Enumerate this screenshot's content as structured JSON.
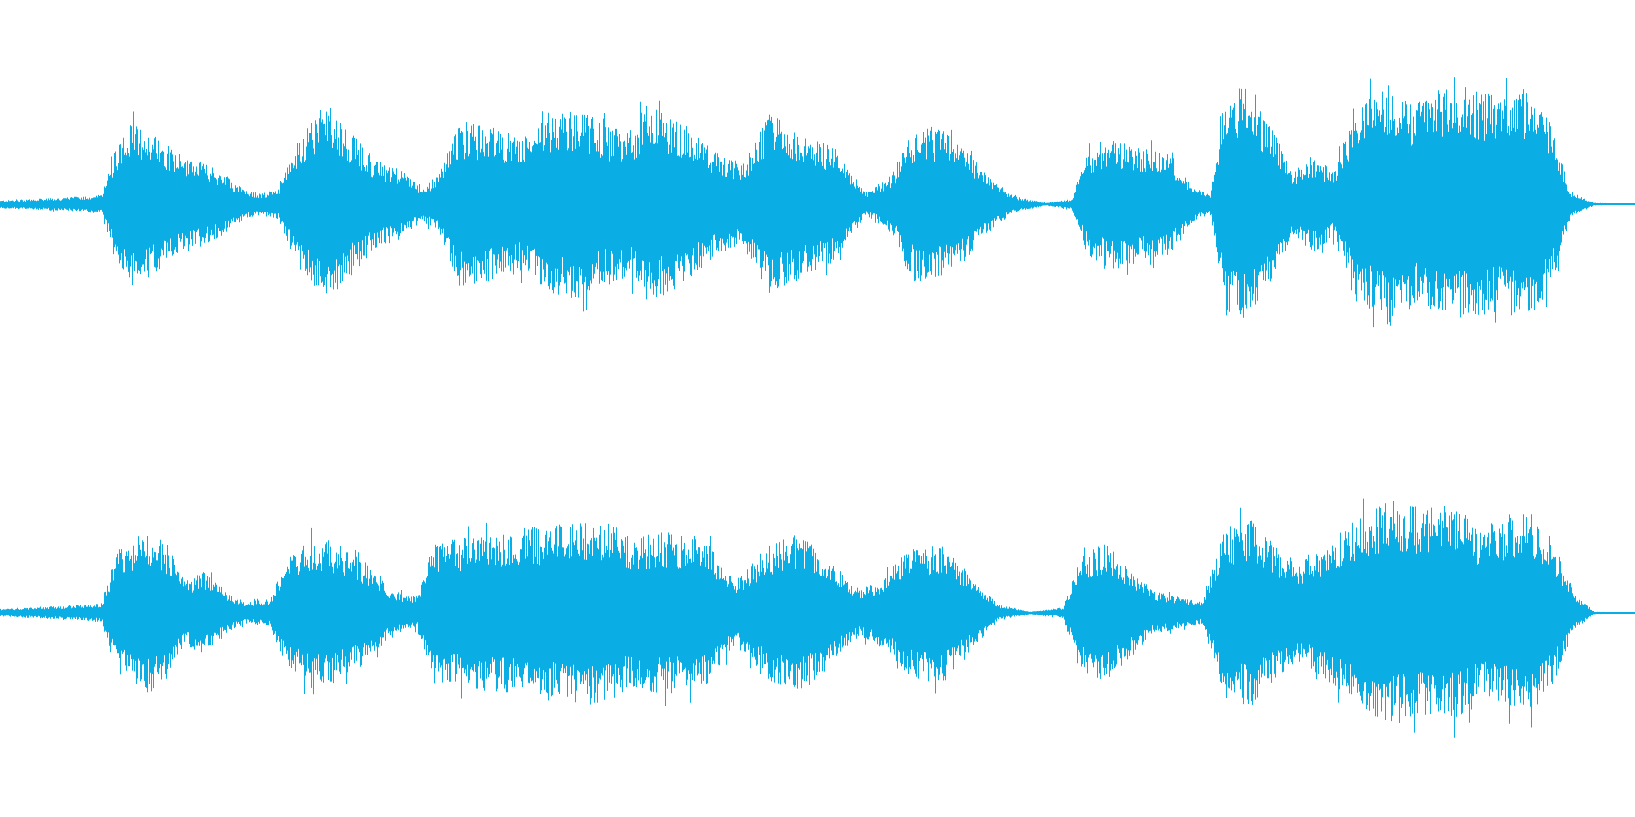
{
  "waveform": {
    "color": "#0aaee4",
    "background": "#ffffff",
    "channels": [
      {
        "name": "channel-1",
        "envelope": [
          [
            0.0,
            0.03
          ],
          [
            0.04,
            0.05
          ],
          [
            0.062,
            0.07
          ],
          [
            0.07,
            0.42
          ],
          [
            0.08,
            0.6
          ],
          [
            0.095,
            0.52
          ],
          [
            0.11,
            0.38
          ],
          [
            0.125,
            0.3
          ],
          [
            0.135,
            0.24
          ],
          [
            0.15,
            0.1
          ],
          [
            0.16,
            0.08
          ],
          [
            0.17,
            0.12
          ],
          [
            0.185,
            0.55
          ],
          [
            0.2,
            0.76
          ],
          [
            0.215,
            0.52
          ],
          [
            0.23,
            0.32
          ],
          [
            0.245,
            0.26
          ],
          [
            0.258,
            0.12
          ],
          [
            0.268,
            0.22
          ],
          [
            0.28,
            0.6
          ],
          [
            0.3,
            0.58
          ],
          [
            0.32,
            0.5
          ],
          [
            0.34,
            0.68
          ],
          [
            0.355,
            0.7
          ],
          [
            0.37,
            0.58
          ],
          [
            0.385,
            0.54
          ],
          [
            0.395,
            0.74
          ],
          [
            0.415,
            0.62
          ],
          [
            0.44,
            0.36
          ],
          [
            0.455,
            0.3
          ],
          [
            0.47,
            0.66
          ],
          [
            0.49,
            0.55
          ],
          [
            0.51,
            0.42
          ],
          [
            0.53,
            0.08
          ],
          [
            0.545,
            0.22
          ],
          [
            0.56,
            0.58
          ],
          [
            0.575,
            0.56
          ],
          [
            0.59,
            0.42
          ],
          [
            0.605,
            0.2
          ],
          [
            0.62,
            0.06
          ],
          [
            0.64,
            0.01
          ],
          [
            0.655,
            0.04
          ],
          [
            0.665,
            0.38
          ],
          [
            0.68,
            0.48
          ],
          [
            0.7,
            0.42
          ],
          [
            0.715,
            0.38
          ],
          [
            0.73,
            0.12
          ],
          [
            0.74,
            0.08
          ],
          [
            0.75,
            0.9
          ],
          [
            0.765,
            0.84
          ],
          [
            0.78,
            0.52
          ],
          [
            0.79,
            0.24
          ],
          [
            0.805,
            0.36
          ],
          [
            0.815,
            0.24
          ],
          [
            0.83,
            0.74
          ],
          [
            0.85,
            0.9
          ],
          [
            0.865,
            0.74
          ],
          [
            0.88,
            0.88
          ],
          [
            0.9,
            0.86
          ],
          [
            0.92,
            0.8
          ],
          [
            0.935,
            0.88
          ],
          [
            0.95,
            0.56
          ],
          [
            0.96,
            0.1
          ],
          [
            0.975,
            0.01
          ],
          [
            1.0,
            0.0
          ]
        ]
      },
      {
        "name": "channel-2",
        "envelope": [
          [
            0.0,
            0.03
          ],
          [
            0.04,
            0.05
          ],
          [
            0.062,
            0.07
          ],
          [
            0.07,
            0.42
          ],
          [
            0.085,
            0.6
          ],
          [
            0.1,
            0.56
          ],
          [
            0.112,
            0.24
          ],
          [
            0.125,
            0.3
          ],
          [
            0.14,
            0.14
          ],
          [
            0.15,
            0.08
          ],
          [
            0.165,
            0.1
          ],
          [
            0.175,
            0.4
          ],
          [
            0.19,
            0.56
          ],
          [
            0.205,
            0.52
          ],
          [
            0.225,
            0.36
          ],
          [
            0.24,
            0.16
          ],
          [
            0.255,
            0.12
          ],
          [
            0.265,
            0.52
          ],
          [
            0.29,
            0.56
          ],
          [
            0.32,
            0.62
          ],
          [
            0.345,
            0.66
          ],
          [
            0.365,
            0.72
          ],
          [
            0.385,
            0.56
          ],
          [
            0.405,
            0.6
          ],
          [
            0.43,
            0.56
          ],
          [
            0.45,
            0.24
          ],
          [
            0.47,
            0.5
          ],
          [
            0.49,
            0.6
          ],
          [
            0.51,
            0.36
          ],
          [
            0.525,
            0.18
          ],
          [
            0.54,
            0.26
          ],
          [
            0.555,
            0.48
          ],
          [
            0.575,
            0.52
          ],
          [
            0.595,
            0.26
          ],
          [
            0.61,
            0.06
          ],
          [
            0.63,
            0.01
          ],
          [
            0.65,
            0.04
          ],
          [
            0.66,
            0.4
          ],
          [
            0.675,
            0.52
          ],
          [
            0.69,
            0.34
          ],
          [
            0.705,
            0.16
          ],
          [
            0.72,
            0.12
          ],
          [
            0.735,
            0.08
          ],
          [
            0.748,
            0.62
          ],
          [
            0.765,
            0.7
          ],
          [
            0.78,
            0.48
          ],
          [
            0.795,
            0.38
          ],
          [
            0.81,
            0.48
          ],
          [
            0.83,
            0.7
          ],
          [
            0.85,
            0.84
          ],
          [
            0.87,
            0.76
          ],
          [
            0.89,
            0.8
          ],
          [
            0.905,
            0.62
          ],
          [
            0.92,
            0.7
          ],
          [
            0.935,
            0.76
          ],
          [
            0.95,
            0.52
          ],
          [
            0.962,
            0.14
          ],
          [
            0.975,
            0.01
          ],
          [
            1.0,
            0.0
          ]
        ]
      }
    ]
  }
}
